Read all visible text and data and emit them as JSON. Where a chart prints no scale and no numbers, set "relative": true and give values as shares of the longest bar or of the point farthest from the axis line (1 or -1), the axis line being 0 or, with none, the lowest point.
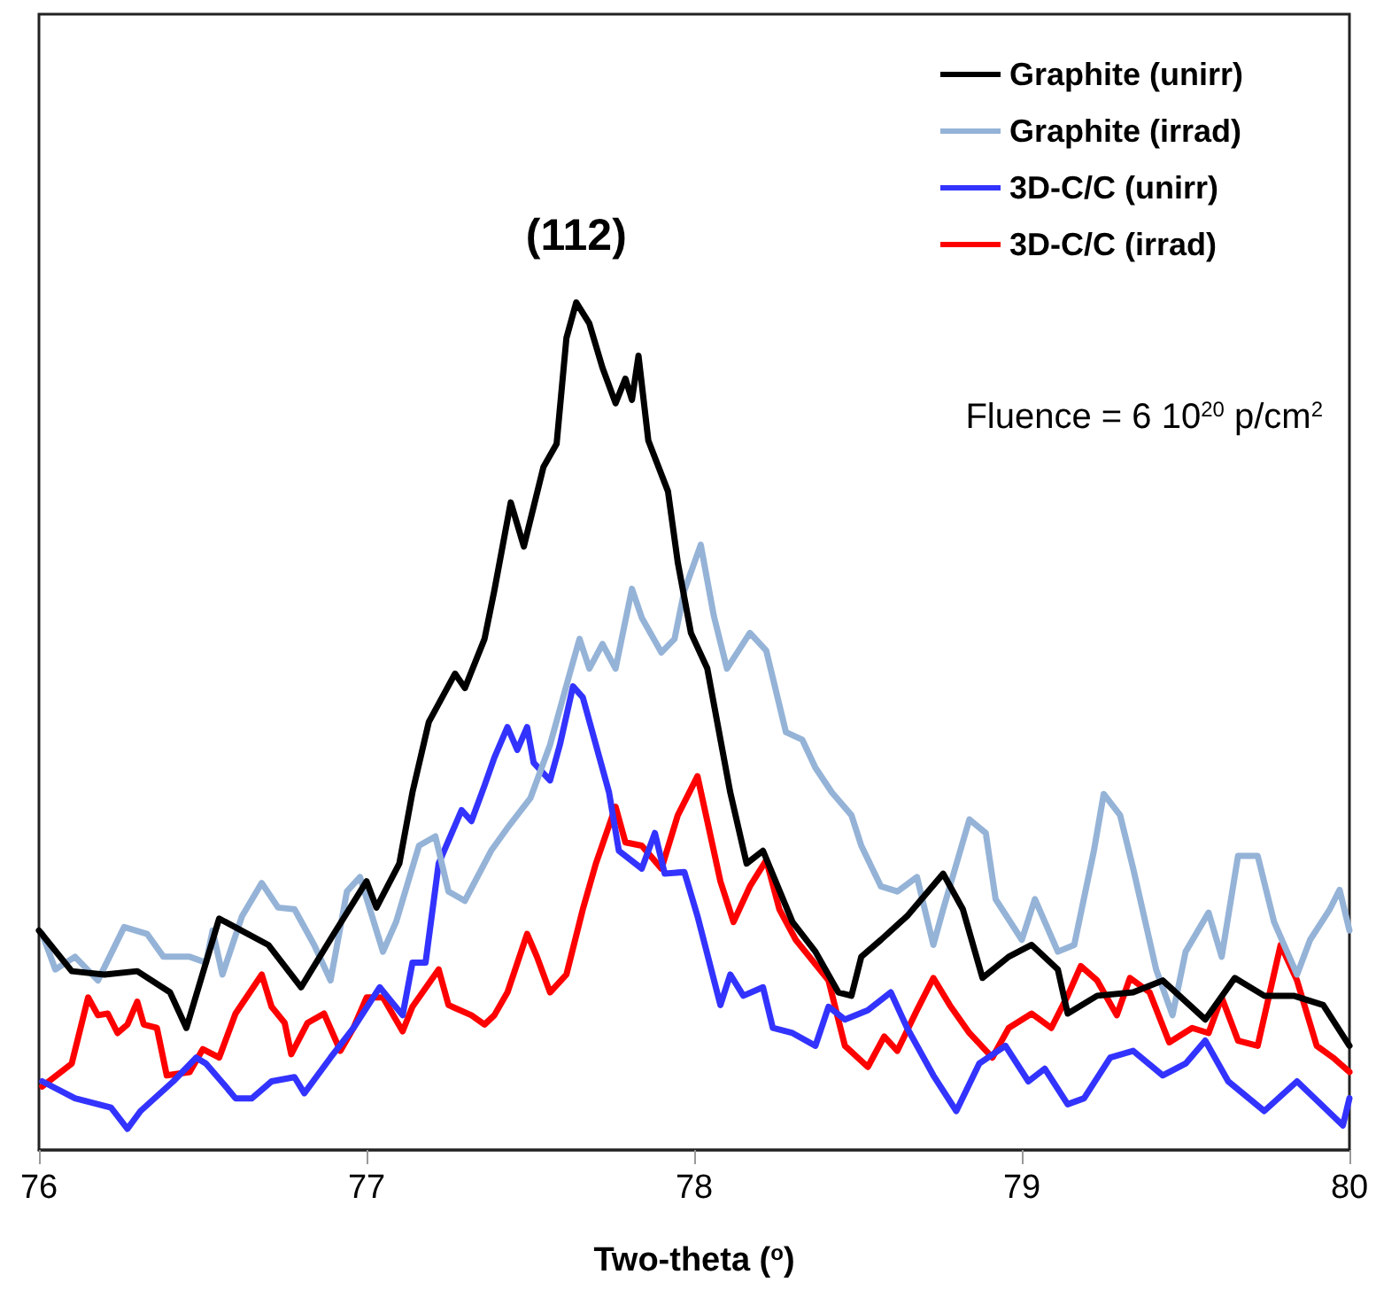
{
  "chart_data": {
    "type": "line",
    "relative": true,
    "xlabel": "Two-theta ($^{o}$)",
    "xlim": [
      76,
      80
    ],
    "xticks": [
      76,
      77,
      78,
      79,
      80
    ],
    "grid": false,
    "legend": "top right",
    "marker": "none",
    "line_style": "solid",
    "annotations": [
      {
        "text": "(112)",
        "x": 77.64,
        "y": 1.0
      },
      "Fluence = 6 10$^{20}$ p/cm$^{2}$"
    ],
    "series": [
      {
        "name": "Graphite (unirr)",
        "color": "#000000",
        "x": [
          76.0,
          76.1,
          76.2,
          76.3,
          76.4,
          76.45,
          76.55,
          76.7,
          76.8,
          76.9,
          77.0,
          77.03,
          77.1,
          77.14,
          77.19,
          77.27,
          77.3,
          77.36,
          77.39,
          77.44,
          77.48,
          77.54,
          77.58,
          77.61,
          77.64,
          77.68,
          77.72,
          77.76,
          77.79,
          77.81,
          77.83,
          77.86,
          77.92,
          77.95,
          77.99,
          78.04,
          78.11,
          78.16,
          78.21,
          78.3,
          78.37,
          78.44,
          78.48,
          78.51,
          78.57,
          78.65,
          78.76,
          78.82,
          78.88,
          78.96,
          79.03,
          79.11,
          79.14,
          79.23,
          79.34,
          79.43,
          79.56,
          79.65,
          79.74,
          79.83,
          79.92,
          80.0
        ],
        "values": [
          0.259,
          0.211,
          0.207,
          0.211,
          0.186,
          0.144,
          0.273,
          0.242,
          0.192,
          0.255,
          0.317,
          0.286,
          0.338,
          0.422,
          0.505,
          0.562,
          0.545,
          0.603,
          0.66,
          0.764,
          0.712,
          0.806,
          0.833,
          0.958,
          1.0,
          0.975,
          0.923,
          0.881,
          0.91,
          0.885,
          0.937,
          0.837,
          0.777,
          0.693,
          0.61,
          0.568,
          0.422,
          0.338,
          0.353,
          0.269,
          0.234,
          0.186,
          0.182,
          0.228,
          0.248,
          0.276,
          0.326,
          0.284,
          0.203,
          0.228,
          0.242,
          0.213,
          0.161,
          0.182,
          0.186,
          0.2,
          0.154,
          0.203,
          0.182,
          0.182,
          0.171,
          0.123
        ]
      },
      {
        "name": "Graphite (irrad)",
        "color": "#95b3d7",
        "x": [
          76.01,
          76.05,
          76.11,
          76.18,
          76.26,
          76.33,
          76.38,
          76.46,
          76.51,
          76.53,
          76.56,
          76.62,
          76.68,
          76.73,
          76.78,
          76.84,
          76.89,
          76.94,
          76.98,
          77.05,
          77.09,
          77.16,
          77.21,
          77.25,
          77.3,
          77.38,
          77.43,
          77.5,
          77.56,
          77.62,
          77.65,
          77.68,
          77.72,
          77.76,
          77.81,
          77.84,
          77.9,
          77.94,
          77.97,
          78.02,
          78.06,
          78.1,
          78.17,
          78.22,
          78.28,
          78.33,
          78.37,
          78.42,
          78.48,
          78.51,
          78.57,
          78.62,
          78.68,
          78.73,
          78.76,
          78.84,
          78.89,
          78.92,
          79.0,
          79.04,
          79.11,
          79.16,
          79.22,
          79.25,
          79.3,
          79.34,
          79.41,
          79.46,
          79.5,
          79.57,
          79.61,
          79.66,
          79.72,
          79.77,
          79.84,
          79.88,
          79.94,
          79.97,
          80.0
        ],
        "values": [
          0.255,
          0.213,
          0.228,
          0.2,
          0.263,
          0.255,
          0.228,
          0.228,
          0.221,
          0.259,
          0.207,
          0.276,
          0.315,
          0.286,
          0.284,
          0.242,
          0.2,
          0.305,
          0.322,
          0.234,
          0.269,
          0.359,
          0.37,
          0.305,
          0.294,
          0.353,
          0.38,
          0.415,
          0.478,
          0.562,
          0.603,
          0.568,
          0.597,
          0.568,
          0.662,
          0.628,
          0.587,
          0.603,
          0.66,
          0.714,
          0.63,
          0.568,
          0.61,
          0.589,
          0.493,
          0.484,
          0.451,
          0.422,
          0.395,
          0.359,
          0.311,
          0.305,
          0.322,
          0.242,
          0.284,
          0.39,
          0.374,
          0.296,
          0.248,
          0.296,
          0.234,
          0.242,
          0.353,
          0.42,
          0.395,
          0.332,
          0.213,
          0.159,
          0.234,
          0.28,
          0.228,
          0.347,
          0.347,
          0.269,
          0.207,
          0.248,
          0.284,
          0.307,
          0.259
        ]
      },
      {
        "name": "3D-C/C (unirr)",
        "color": "#3333ff",
        "x": [
          76.01,
          76.11,
          76.22,
          76.27,
          76.31,
          76.41,
          76.48,
          76.51,
          76.57,
          76.6,
          76.65,
          76.71,
          76.78,
          76.81,
          76.89,
          76.96,
          77.02,
          77.04,
          77.11,
          77.14,
          77.18,
          77.22,
          77.29,
          77.32,
          77.36,
          77.39,
          77.43,
          77.46,
          77.49,
          77.51,
          77.56,
          77.59,
          77.63,
          77.66,
          77.74,
          77.77,
          77.84,
          77.88,
          77.91,
          77.97,
          78.01,
          78.08,
          78.11,
          78.15,
          78.21,
          78.24,
          78.3,
          78.37,
          78.41,
          78.46,
          78.53,
          78.6,
          78.65,
          78.73,
          78.8,
          78.87,
          78.95,
          79.02,
          79.07,
          79.14,
          79.19,
          79.27,
          79.34,
          79.43,
          79.5,
          79.56,
          79.63,
          79.74,
          79.84,
          79.94,
          79.98,
          80.0
        ],
        "values": [
          0.081,
          0.061,
          0.05,
          0.025,
          0.046,
          0.081,
          0.109,
          0.102,
          0.075,
          0.061,
          0.061,
          0.081,
          0.086,
          0.067,
          0.109,
          0.144,
          0.18,
          0.192,
          0.159,
          0.221,
          0.221,
          0.338,
          0.401,
          0.388,
          0.43,
          0.463,
          0.499,
          0.472,
          0.499,
          0.457,
          0.436,
          0.478,
          0.547,
          0.534,
          0.422,
          0.353,
          0.332,
          0.374,
          0.326,
          0.328,
          0.276,
          0.171,
          0.207,
          0.182,
          0.192,
          0.144,
          0.138,
          0.123,
          0.169,
          0.154,
          0.165,
          0.186,
          0.144,
          0.088,
          0.046,
          0.102,
          0.123,
          0.081,
          0.096,
          0.054,
          0.061,
          0.109,
          0.117,
          0.088,
          0.102,
          0.129,
          0.081,
          0.046,
          0.081,
          0.044,
          0.029,
          0.061
        ]
      },
      {
        "name": "3D-C/C (irrad)",
        "color": "#ff0000",
        "x": [
          76.01,
          76.1,
          76.15,
          76.18,
          76.21,
          76.24,
          76.27,
          76.3,
          76.32,
          76.36,
          76.39,
          76.46,
          76.5,
          76.55,
          76.6,
          76.68,
          76.71,
          76.75,
          76.77,
          76.82,
          76.87,
          76.92,
          76.96,
          77.0,
          77.05,
          77.11,
          77.14,
          77.22,
          77.25,
          77.32,
          77.36,
          77.39,
          77.43,
          77.49,
          77.52,
          77.56,
          77.61,
          77.66,
          77.7,
          77.76,
          77.79,
          77.84,
          77.9,
          77.95,
          78.01,
          78.04,
          78.08,
          78.12,
          78.17,
          78.22,
          78.26,
          78.31,
          78.41,
          78.46,
          78.53,
          78.58,
          78.62,
          78.68,
          78.73,
          78.78,
          78.84,
          78.91,
          78.96,
          79.03,
          79.09,
          79.14,
          79.18,
          79.23,
          79.29,
          79.33,
          79.39,
          79.45,
          79.52,
          79.57,
          79.61,
          79.66,
          79.72,
          79.79,
          79.84,
          79.9,
          79.95,
          80.0
        ],
        "values": [
          0.075,
          0.102,
          0.18,
          0.159,
          0.161,
          0.138,
          0.148,
          0.175,
          0.148,
          0.144,
          0.088,
          0.092,
          0.119,
          0.109,
          0.161,
          0.207,
          0.169,
          0.15,
          0.113,
          0.15,
          0.161,
          0.117,
          0.144,
          0.18,
          0.18,
          0.14,
          0.169,
          0.213,
          0.171,
          0.159,
          0.148,
          0.159,
          0.186,
          0.255,
          0.228,
          0.186,
          0.207,
          0.284,
          0.338,
          0.405,
          0.363,
          0.359,
          0.332,
          0.395,
          0.441,
          0.388,
          0.317,
          0.269,
          0.311,
          0.342,
          0.284,
          0.248,
          0.2,
          0.123,
          0.098,
          0.134,
          0.117,
          0.165,
          0.203,
          0.171,
          0.138,
          0.109,
          0.144,
          0.161,
          0.144,
          0.182,
          0.217,
          0.2,
          0.159,
          0.203,
          0.186,
          0.127,
          0.144,
          0.138,
          0.18,
          0.129,
          0.123,
          0.242,
          0.2,
          0.123,
          0.109,
          0.092
        ]
      }
    ]
  }
}
